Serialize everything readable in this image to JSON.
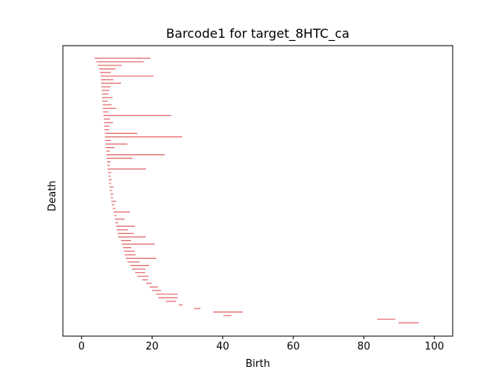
{
  "chart_data": {
    "type": "barcode",
    "title": "Barcode1 for target_8HTC_ca",
    "xlabel": "Birth",
    "ylabel": "Death",
    "xlim": [
      -5.3,
      105.2
    ],
    "xticks": [
      0,
      20,
      40,
      60,
      80,
      100
    ],
    "yticks": [],
    "bar_color": "#e06666",
    "intervals": [
      [
        3.7,
        19.5
      ],
      [
        4.2,
        17.6
      ],
      [
        4.6,
        11.4
      ],
      [
        5.0,
        9.6
      ],
      [
        5.2,
        8.3
      ],
      [
        5.4,
        20.4
      ],
      [
        5.5,
        9.0
      ],
      [
        5.5,
        11.2
      ],
      [
        5.6,
        8.2
      ],
      [
        5.7,
        7.9
      ],
      [
        5.8,
        7.6
      ],
      [
        5.8,
        8.8
      ],
      [
        5.9,
        7.4
      ],
      [
        6.0,
        8.5
      ],
      [
        6.0,
        9.8
      ],
      [
        6.1,
        7.6
      ],
      [
        6.2,
        25.4
      ],
      [
        6.3,
        8.1
      ],
      [
        6.4,
        8.9
      ],
      [
        6.4,
        7.9
      ],
      [
        6.5,
        7.8
      ],
      [
        6.6,
        15.8
      ],
      [
        6.6,
        28.5
      ],
      [
        6.7,
        8.3
      ],
      [
        6.8,
        13.0
      ],
      [
        6.8,
        9.4
      ],
      [
        7.0,
        8.0
      ],
      [
        7.0,
        23.6
      ],
      [
        7.1,
        14.5
      ],
      [
        7.2,
        8.3
      ],
      [
        7.3,
        8.0
      ],
      [
        7.4,
        18.3
      ],
      [
        7.5,
        8.4
      ],
      [
        7.6,
        8.2
      ],
      [
        7.7,
        8.6
      ],
      [
        7.8,
        8.4
      ],
      [
        7.9,
        9.1
      ],
      [
        8.0,
        8.6
      ],
      [
        8.1,
        9.0
      ],
      [
        8.3,
        8.9
      ],
      [
        8.4,
        9.8
      ],
      [
        8.6,
        9.3
      ],
      [
        8.9,
        9.6
      ],
      [
        9.1,
        13.7
      ],
      [
        9.3,
        9.9
      ],
      [
        9.5,
        12.2
      ],
      [
        9.6,
        10.4
      ],
      [
        9.8,
        15.1
      ],
      [
        10.0,
        13.2
      ],
      [
        10.2,
        14.8
      ],
      [
        10.4,
        18.2
      ],
      [
        11.2,
        14.0
      ],
      [
        11.4,
        20.8
      ],
      [
        11.7,
        14.1
      ],
      [
        12.0,
        15.0
      ],
      [
        12.2,
        15.3
      ],
      [
        12.5,
        21.2
      ],
      [
        13.0,
        16.4
      ],
      [
        13.8,
        19.2
      ],
      [
        14.3,
        18.1
      ],
      [
        15.2,
        18.0
      ],
      [
        15.8,
        19.0
      ],
      [
        17.2,
        18.8
      ],
      [
        18.3,
        19.9
      ],
      [
        19.3,
        21.6
      ],
      [
        20.0,
        22.5
      ],
      [
        21.1,
        27.2
      ],
      [
        21.7,
        27.2
      ],
      [
        23.9,
        26.8
      ],
      [
        27.6,
        28.6
      ],
      [
        31.9,
        33.7
      ],
      [
        37.3,
        45.7
      ],
      [
        40.2,
        42.5
      ],
      [
        83.8,
        88.9
      ],
      [
        89.8,
        95.6
      ]
    ]
  }
}
